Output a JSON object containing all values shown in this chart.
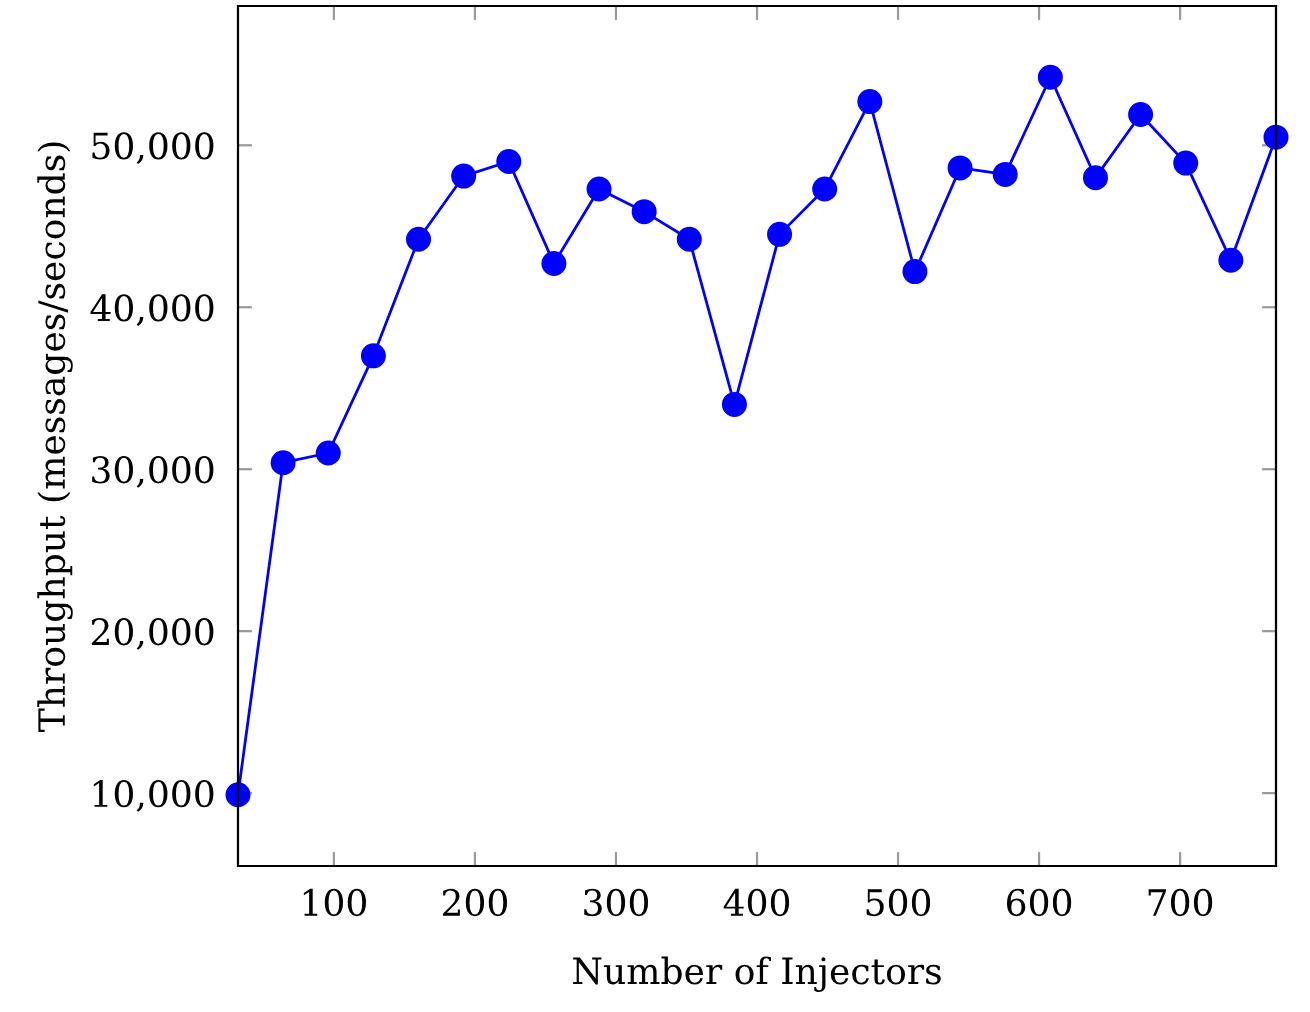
{
  "chart_data": {
    "type": "line",
    "xlabel": "Number of Injectors",
    "ylabel": "Throughput (messages/seconds)",
    "x": [
      32,
      64,
      96,
      128,
      160,
      192,
      224,
      256,
      288,
      320,
      352,
      384,
      416,
      448,
      480,
      512,
      544,
      576,
      608,
      640,
      672,
      704,
      736,
      768
    ],
    "series": [
      {
        "color": "#0000ff",
        "values": [
          9900,
          30400,
          31000,
          37000,
          44200,
          48100,
          49000,
          42700,
          47300,
          45900,
          44200,
          34000,
          44500,
          47300,
          52700,
          42200,
          48600,
          48200,
          54200,
          48000,
          51900,
          48900,
          42900,
          50500
        ]
      }
    ],
    "xlim": [
      32,
      768
    ],
    "xticks": [
      100,
      200,
      300,
      400,
      500,
      600,
      700
    ],
    "ylim": [
      5500,
      58600
    ],
    "yticks": [
      {
        "value": 10000,
        "label": "10,000"
      },
      {
        "value": 20000,
        "label": "20,000"
      },
      {
        "value": 30000,
        "label": "30,000"
      },
      {
        "value": 40000,
        "label": "40,000"
      },
      {
        "value": 50000,
        "label": "50,000"
      }
    ],
    "marker": "circle",
    "line_style": "solid",
    "grid": false
  }
}
